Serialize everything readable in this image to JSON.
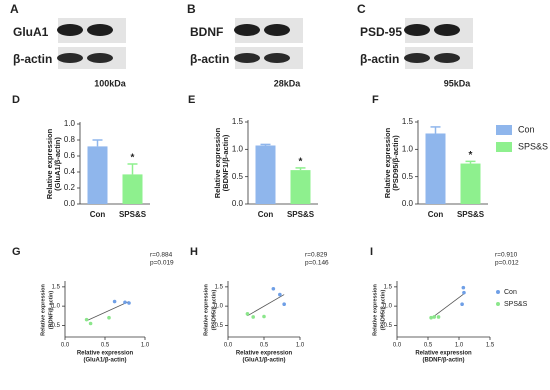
{
  "blots": [
    {
      "panel": "A",
      "protein": "GluA1",
      "control": "β-actin",
      "size": "100kDa"
    },
    {
      "panel": "B",
      "protein": "BDNF",
      "control": "β-actin",
      "size": "28kDa"
    },
    {
      "panel": "C",
      "protein": "PSD-95",
      "control": "β-actin",
      "size": "95kDa"
    }
  ],
  "chart_data": [
    {
      "type": "bar",
      "panel": "D",
      "categories": [
        "Con",
        "SPS&S"
      ],
      "values": [
        0.72,
        0.37
      ],
      "errors": [
        0.08,
        0.13
      ],
      "colors": [
        "#8fb6ec",
        "#8ef08e"
      ],
      "ylabel": [
        "Relative expression",
        "(GluA1/β-actin)"
      ],
      "ylim": [
        0,
        1
      ],
      "yticks": [
        {
          "value": 0,
          "label": "0.0"
        },
        0.2,
        0.4,
        0.6,
        0.8,
        {
          "value": 1,
          "label": "1.0"
        }
      ],
      "significance": "*",
      "legend": false
    },
    {
      "type": "bar",
      "panel": "E",
      "categories": [
        "Con",
        "SPS&S"
      ],
      "values": [
        1.07,
        0.62
      ],
      "errors": [
        0.02,
        0.04
      ],
      "colors": [
        "#8fb6ec",
        "#8ef08e"
      ],
      "ylabel": [
        "Relative expression",
        "(BDNF1/β-actin)"
      ],
      "ylim": [
        0,
        1.5
      ],
      "yticks": [
        {
          "value": 0,
          "label": "0.0"
        },
        0.5,
        {
          "value": 1,
          "label": "1.0"
        },
        1.5
      ],
      "significance": "*",
      "legend": false
    },
    {
      "type": "bar",
      "panel": "F",
      "categories": [
        "Con",
        "SPS&S"
      ],
      "values": [
        1.29,
        0.74
      ],
      "errors": [
        0.12,
        0.04
      ],
      "colors": [
        "#8fb6ec",
        "#8ef08e"
      ],
      "ylabel": [
        "Relative expression",
        "(PSD95/β-actin)"
      ],
      "ylim": [
        0,
        1.5
      ],
      "yticks": [
        {
          "value": 0,
          "label": "0.0"
        },
        0.5,
        {
          "value": 1,
          "label": "1.0"
        },
        1.5
      ],
      "significance": "*",
      "legend": true
    },
    {
      "type": "scatter",
      "panel": "G",
      "stats": [
        "r=0.884",
        "p=0.019"
      ],
      "xlabel": [
        "Relative expression",
        "(GluA1/β-actin)"
      ],
      "ylabel": [
        "Relative expression",
        "(BDNF/β-actin)"
      ],
      "xlim": [
        0,
        1
      ],
      "xticks": [
        {
          "value": 0,
          "label": "0.0"
        },
        0.5,
        {
          "value": 1,
          "label": "1.0"
        }
      ],
      "ylim": [
        0.2,
        1.6
      ],
      "yticks": [
        0.5,
        {
          "value": 1,
          "label": "1.0"
        },
        1.5
      ],
      "series": [
        {
          "name": "Con",
          "color": "#6f9fe6",
          "x": [
            0.62,
            0.75,
            0.8
          ],
          "y": [
            1.12,
            1.1,
            1.08
          ]
        },
        {
          "name": "SPS&S",
          "color": "#8be68b",
          "x": [
            0.27,
            0.32,
            0.55
          ],
          "y": [
            0.65,
            0.55,
            0.7
          ]
        }
      ],
      "fit": {
        "x": [
          0.27,
          0.8
        ],
        "y": [
          0.62,
          1.12
        ]
      },
      "legend": false
    },
    {
      "type": "scatter",
      "panel": "H",
      "stats": [
        "r=0.829",
        "p=0.146"
      ],
      "xlabel": [
        "Relative expression",
        "(GluA1/β-actin)"
      ],
      "ylabel": [
        "Relative expression",
        "(PSD95/β-actin)"
      ],
      "xlim": [
        0,
        1
      ],
      "xticks": [
        {
          "value": 0,
          "label": "0.0"
        },
        0.5,
        {
          "value": 1,
          "label": "1.0"
        }
      ],
      "ylim": [
        0.2,
        1.6
      ],
      "yticks": [
        0.5,
        {
          "value": 1,
          "label": "1.0"
        },
        1.5
      ],
      "series": [
        {
          "name": "Con",
          "color": "#6f9fe6",
          "x": [
            0.63,
            0.72,
            0.78
          ],
          "y": [
            1.45,
            1.3,
            1.05
          ]
        },
        {
          "name": "SPS&S",
          "color": "#8be68b",
          "x": [
            0.27,
            0.35,
            0.5
          ],
          "y": [
            0.8,
            0.72,
            0.73
          ]
        }
      ],
      "fit": {
        "x": [
          0.27,
          0.78
        ],
        "y": [
          0.75,
          1.3
        ]
      },
      "legend": false
    },
    {
      "type": "scatter",
      "panel": "I",
      "stats": [
        "r=0.910",
        "p=0.012"
      ],
      "xlabel": [
        "Relative expression",
        "(BDNF/β-actin)"
      ],
      "ylabel": [
        "Relative expression",
        "(PSD95/β-actin)"
      ],
      "xlim": [
        0,
        1.5
      ],
      "xticks": [
        {
          "value": 0,
          "label": "0.0"
        },
        0.5,
        {
          "value": 1,
          "label": "1.0"
        },
        1.5
      ],
      "ylim": [
        0.2,
        1.6
      ],
      "yticks": [
        0.5,
        {
          "value": 1,
          "label": "1.0"
        },
        1.5
      ],
      "series": [
        {
          "name": "Con",
          "color": "#6f9fe6",
          "x": [
            1.07,
            1.08,
            1.05
          ],
          "y": [
            1.48,
            1.35,
            1.05
          ]
        },
        {
          "name": "SPS&S",
          "color": "#8be68b",
          "x": [
            0.55,
            0.6,
            0.67
          ],
          "y": [
            0.7,
            0.72,
            0.72
          ]
        }
      ],
      "fit": {
        "x": [
          0.55,
          1.08
        ],
        "y": [
          0.68,
          1.32
        ]
      },
      "legend": true
    }
  ]
}
